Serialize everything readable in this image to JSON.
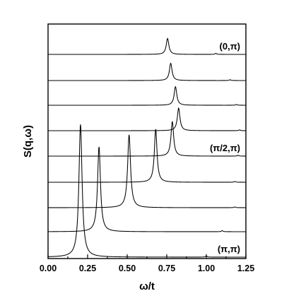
{
  "chart_data": {
    "type": "line",
    "xlabel": "ω/t",
    "ylabel": "S(q,ω)",
    "xlim": [
      0.0,
      1.25
    ],
    "x_ticks": [
      "0.00",
      "0.25",
      "0.50",
      "0.75",
      "1.00",
      "1.25"
    ],
    "y_ticks_labeled": false,
    "grid": false,
    "legend": "none",
    "stacking": "curves vertically offset, bottom (π,π) to top (0,π)",
    "series": [
      {
        "peak_omega": 0.205,
        "peak_height": 1.0,
        "width": 0.012,
        "side_peaks": [
          {
            "omega": 1.0,
            "height": 0.008
          }
        ]
      },
      {
        "peak_omega": 0.322,
        "peak_height": 0.64,
        "width": 0.011,
        "side_peaks": [
          {
            "omega": 1.1,
            "height": 0.008
          }
        ]
      },
      {
        "peak_omega": 0.512,
        "peak_height": 0.55,
        "width": 0.011,
        "side_peaks": [
          {
            "omega": 1.18,
            "height": 0.006
          }
        ]
      },
      {
        "peak_omega": 0.68,
        "peak_height": 0.4,
        "width": 0.01,
        "side_peaks": [
          {
            "omega": 1.18,
            "height": 0.006
          }
        ]
      },
      {
        "peak_omega": 0.785,
        "peak_height": 0.26,
        "width": 0.01,
        "side_peaks": [
          {
            "omega": 1.2,
            "height": 0.006
          }
        ]
      },
      {
        "peak_omega": 0.825,
        "peak_height": 0.17,
        "width": 0.01,
        "side_peaks": [
          {
            "omega": 1.21,
            "height": 0.006
          }
        ]
      },
      {
        "peak_omega": 0.805,
        "peak_height": 0.14,
        "width": 0.01,
        "side_peaks": [
          {
            "omega": 1.19,
            "height": 0.006
          }
        ]
      },
      {
        "peak_omega": 0.775,
        "peak_height": 0.13,
        "width": 0.01,
        "side_peaks": [
          {
            "omega": 1.15,
            "height": 0.006
          }
        ]
      },
      {
        "peak_omega": 0.755,
        "peak_height": 0.12,
        "width": 0.01,
        "side_peaks": [
          {
            "omega": 1.06,
            "height": 0.008
          }
        ]
      }
    ],
    "annotations": [
      {
        "text": "(0,π)",
        "near_series": 8
      },
      {
        "text": "(π/2,π)",
        "near_series": 4
      },
      {
        "text": "(π,π)",
        "near_series": 0
      }
    ]
  }
}
